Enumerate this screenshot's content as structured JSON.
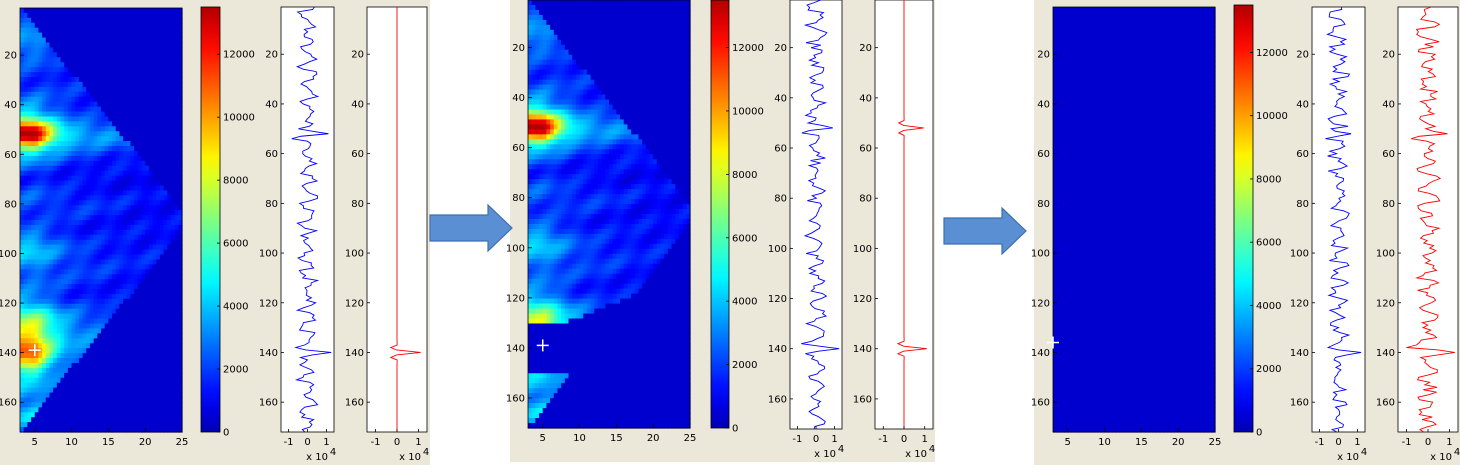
{
  "arrow_color": "#5b8fd4",
  "panels": [
    {
      "scalogram": "full",
      "marker": [
        5,
        139
      ],
      "red_trace": "isolated"
    },
    {
      "scalogram": "masked",
      "marker": [
        5,
        139
      ],
      "red_trace": "isolated"
    },
    {
      "scalogram": "empty",
      "marker": [
        3,
        136
      ],
      "red_trace": "full"
    }
  ],
  "chart_data": {
    "type": "heatmap",
    "heatmap": {
      "xlim": [
        3,
        25
      ],
      "ylim": [
        1,
        172
      ],
      "x_ticks": [
        "5",
        "10",
        "15",
        "20",
        "25"
      ],
      "y_ticks": [
        "20",
        "40",
        "60",
        "80",
        "100",
        "120",
        "140",
        "160"
      ],
      "y_tick_values": [
        20,
        40,
        60,
        80,
        100,
        120,
        140,
        160
      ]
    },
    "colorbar": {
      "clim": [
        0,
        13500
      ],
      "ticks": [
        "0",
        "2000",
        "4000",
        "6000",
        "8000",
        "10000",
        "12000"
      ],
      "tick_values": [
        0,
        2000,
        4000,
        6000,
        8000,
        10000,
        12000
      ],
      "colormap": "jet"
    },
    "traces": {
      "xlim": [
        -1.4,
        1.4
      ],
      "x_ticks": [
        "-1",
        "0",
        "1"
      ],
      "x_tick_values": [
        -1,
        0,
        1
      ],
      "exponent_label": "x 10",
      "exponent": "4",
      "ylim": [
        1,
        172
      ],
      "y_ticks": [
        "20",
        "40",
        "60",
        "80",
        "100",
        "120",
        "140",
        "160"
      ],
      "y_tick_values": [
        20,
        40,
        60,
        80,
        100,
        120,
        140,
        160
      ],
      "signal_color": "#0000ff",
      "filtered_color": "#ff0000",
      "event_samples": [
        52,
        140
      ]
    }
  }
}
